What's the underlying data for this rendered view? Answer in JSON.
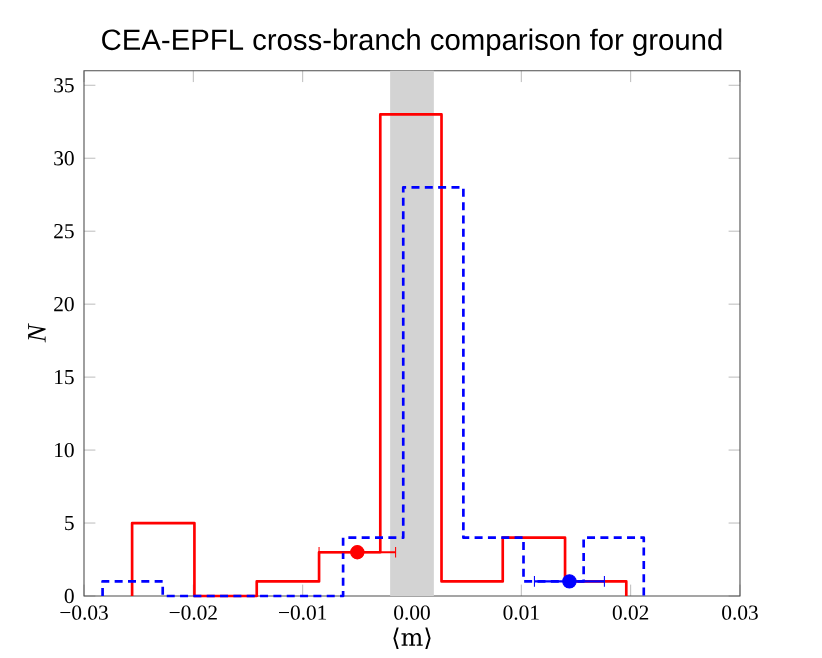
{
  "chart_data": {
    "type": "histogram",
    "title": "CEA-EPFL cross-branch comparison for ground",
    "xlabel": "⟨m⟩",
    "ylabel": "N",
    "xlim": [
      -0.03,
      0.03
    ],
    "ylim": [
      0,
      36
    ],
    "xticks": [
      {
        "value": -0.03,
        "label": "−0.03"
      },
      {
        "value": -0.02,
        "label": "−0.02"
      },
      {
        "value": -0.01,
        "label": "−0.01"
      },
      {
        "value": 0,
        "label": "0.00"
      },
      {
        "value": 0.01,
        "label": "0.01"
      },
      {
        "value": 0.02,
        "label": "0.02"
      },
      {
        "value": 0.03,
        "label": "0.03"
      }
    ],
    "yticks": [
      0,
      5,
      10,
      15,
      20,
      25,
      30,
      35
    ],
    "bands": [
      {
        "axis": "x",
        "from": -0.002,
        "to": 0.002,
        "color": "#d3d3d3"
      }
    ],
    "series": [
      {
        "color": "#ff0000",
        "line_style": "solid",
        "bins": [
          -0.0256,
          -0.0199,
          -0.0142,
          -0.0085,
          -0.0029,
          0.0027,
          0.0083,
          0.014,
          0.0196
        ],
        "values": [
          5,
          0,
          1,
          3,
          33,
          1,
          4,
          1
        ]
      },
      {
        "color": "#0000ff",
        "line_style": "dashed",
        "bins": [
          -0.0283,
          -0.0228,
          -0.0173,
          -0.0118,
          -0.0063,
          -0.0008,
          0.0047,
          0.0102,
          0.0157,
          0.0212
        ],
        "values": [
          1,
          0,
          0,
          0,
          4,
          28,
          4,
          1,
          4
        ]
      },
      {
        "type": "scatter",
        "color": "#ff0000",
        "marker": "circle",
        "x": [
          -0.005
        ],
        "values": [
          3
        ],
        "xerrors": [
          0.0035
        ]
      },
      {
        "type": "scatter",
        "color": "#0000ff",
        "marker": "circle",
        "x": [
          0.0144
        ],
        "values": [
          1
        ],
        "xerrors": [
          0.0032
        ]
      }
    ]
  }
}
